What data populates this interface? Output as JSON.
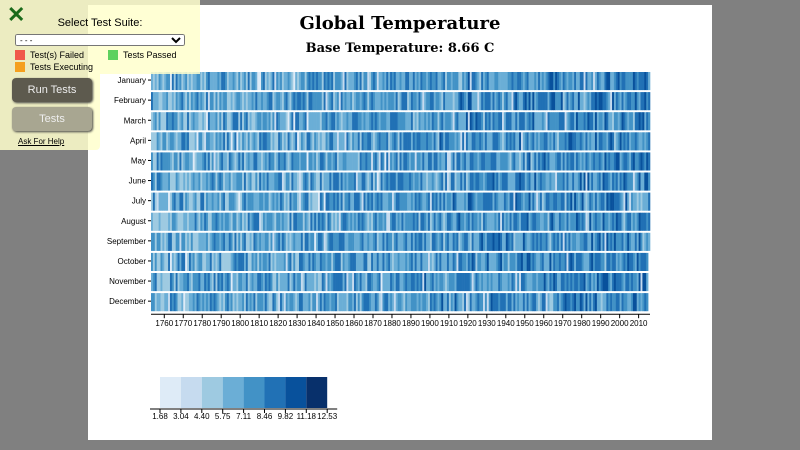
{
  "chart_data": {
    "type": "heatmap",
    "title": "Global Temperature",
    "subtitle": "Base Temperature: 8.66 C",
    "base_temperature": 8.66,
    "x_range": [
      1753,
      2015
    ],
    "x_ticks": [
      1760,
      1770,
      1780,
      1790,
      1800,
      1810,
      1820,
      1830,
      1840,
      1850,
      1860,
      1870,
      1880,
      1890,
      1900,
      1910,
      1920,
      1930,
      1940,
      1950,
      1960,
      1970,
      1980,
      1990,
      2000,
      2010
    ],
    "months": [
      "January",
      "February",
      "March",
      "April",
      "May",
      "June",
      "July",
      "August",
      "September",
      "October",
      "November",
      "December"
    ],
    "legend": {
      "thresholds": [
        "1.68",
        "3.04",
        "4.40",
        "5.75",
        "7.11",
        "8.46",
        "9.82",
        "11.18",
        "12.53"
      ],
      "colors": [
        "#deebf7",
        "#c6dbef",
        "#9ecae1",
        "#6baed6",
        "#4292c6",
        "#2171b5",
        "#08519c",
        "#08306b"
      ]
    }
  },
  "fcc": {
    "close_icon": "close-x-icon",
    "select_label": "Select Test Suite:",
    "select_value": "- - -",
    "run_label": "Run Tests",
    "tests_label": "Tests",
    "legend": [
      {
        "label": "Test(s) Failed",
        "color": "#f0584a"
      },
      {
        "label": "Tests Passed",
        "color": "#5ed15e"
      },
      {
        "label": "Tests Executing",
        "color": "#f5a01e"
      }
    ],
    "help": "Ask For Help"
  }
}
